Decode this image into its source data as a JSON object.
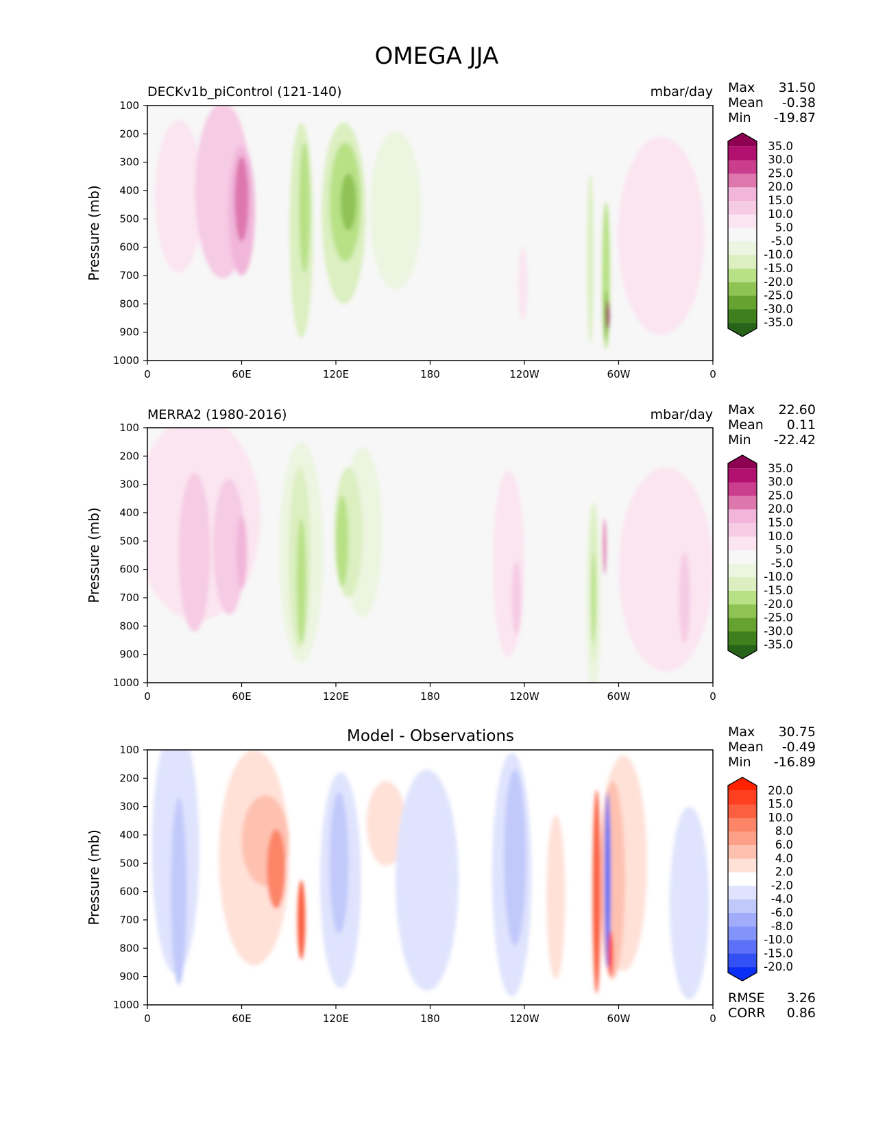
{
  "title": "OMEGA JJA",
  "chart_data": [
    {
      "type": "heatmap",
      "id": "model",
      "title": "DECKv1b_piControl (121-140)",
      "units": "mbar/day",
      "ylabel": "Pressure (mb)",
      "xticks": [
        "0",
        "60E",
        "120E",
        "180",
        "120W",
        "60W",
        "0"
      ],
      "yticks": [
        "100",
        "200",
        "300",
        "400",
        "500",
        "600",
        "700",
        "800",
        "900",
        "1000"
      ],
      "xlim": [
        0,
        360
      ],
      "ylim": [
        1000,
        100
      ],
      "stats": [
        {
          "label": "Max",
          "value": "31.50"
        },
        {
          "label": "Mean",
          "value": "-0.38"
        },
        {
          "label": "Min",
          "value": "-19.87"
        }
      ],
      "colorbar": {
        "labels": [
          "35.0",
          "30.0",
          "25.0",
          "20.0",
          "15.0",
          "10.0",
          "5.0",
          "-5.0",
          "-10.0",
          "-15.0",
          "-20.0",
          "-25.0",
          "-30.0",
          "-35.0"
        ],
        "colors": [
          "#8e0152",
          "#b2106e",
          "#cb3d8d",
          "#de77ae",
          "#f1b6da",
          "#f6cbe4",
          "#fbe5f0",
          "#f7f7f7",
          "#ecf5e0",
          "#dbefc0",
          "#b8e186",
          "#8fc354",
          "#65a22f",
          "#3f7f1e",
          "#276419"
        ]
      },
      "field_blobs": [
        {
          "x": 20,
          "y": 420,
          "w": 30,
          "h": 540,
          "c": "#fbe5f0"
        },
        {
          "x": 48,
          "y": 400,
          "w": 35,
          "h": 620,
          "c": "#f6cbe4"
        },
        {
          "x": 60,
          "y": 470,
          "w": 17,
          "h": 460,
          "c": "#f1b6da"
        },
        {
          "x": 60,
          "y": 430,
          "w": 9,
          "h": 300,
          "c": "#de77ae"
        },
        {
          "x": 98,
          "y": 540,
          "w": 15,
          "h": 760,
          "c": "#dbefc0"
        },
        {
          "x": 100,
          "y": 460,
          "w": 7,
          "h": 460,
          "c": "#b8e186"
        },
        {
          "x": 125,
          "y": 480,
          "w": 28,
          "h": 640,
          "c": "#dbefc0"
        },
        {
          "x": 126,
          "y": 440,
          "w": 20,
          "h": 420,
          "c": "#b8e186"
        },
        {
          "x": 128,
          "y": 440,
          "w": 10,
          "h": 200,
          "c": "#8fc354"
        },
        {
          "x": 158,
          "y": 470,
          "w": 33,
          "h": 560,
          "c": "#ecf5e0"
        },
        {
          "x": 239,
          "y": 730,
          "w": 6,
          "h": 260,
          "c": "#fbe5f0"
        },
        {
          "x": 282,
          "y": 640,
          "w": 4,
          "h": 600,
          "c": "#dbefc0"
        },
        {
          "x": 292,
          "y": 700,
          "w": 5,
          "h": 520,
          "c": "#b8e186"
        },
        {
          "x": 292,
          "y": 840,
          "w": 3,
          "h": 180,
          "c": "#8fc354"
        },
        {
          "x": 293,
          "y": 840,
          "w": 2,
          "h": 100,
          "c": "#8e0152"
        },
        {
          "x": 327,
          "y": 560,
          "w": 55,
          "h": 700,
          "c": "#fbe5f0"
        }
      ]
    },
    {
      "type": "heatmap",
      "id": "obs",
      "title": "MERRA2 (1980-2016)",
      "units": "mbar/day",
      "ylabel": "Pressure (mb)",
      "xticks": [
        "0",
        "60E",
        "120E",
        "180",
        "120W",
        "60W",
        "0"
      ],
      "yticks": [
        "100",
        "200",
        "300",
        "400",
        "500",
        "600",
        "700",
        "800",
        "900",
        "1000"
      ],
      "xlim": [
        0,
        360
      ],
      "ylim": [
        1000,
        100
      ],
      "stats": [
        {
          "label": "Max",
          "value": "22.60"
        },
        {
          "label": "Mean",
          "value": "0.11"
        },
        {
          "label": "Min",
          "value": "-22.42"
        }
      ],
      "colorbar": {
        "labels": [
          "35.0",
          "30.0",
          "25.0",
          "20.0",
          "15.0",
          "10.0",
          "5.0",
          "-5.0",
          "-10.0",
          "-15.0",
          "-20.0",
          "-25.0",
          "-30.0",
          "-35.0"
        ],
        "colors": [
          "#8e0152",
          "#b2106e",
          "#cb3d8d",
          "#de77ae",
          "#f1b6da",
          "#f6cbe4",
          "#fbe5f0",
          "#f7f7f7",
          "#ecf5e0",
          "#dbefc0",
          "#b8e186",
          "#8fc354",
          "#65a22f",
          "#3f7f1e",
          "#276419"
        ]
      },
      "field_blobs": [
        {
          "x": 32,
          "y": 420,
          "w": 80,
          "h": 720,
          "c": "#fbe5f0"
        },
        {
          "x": 30,
          "y": 540,
          "w": 20,
          "h": 560,
          "c": "#f6cbe4"
        },
        {
          "x": 52,
          "y": 520,
          "w": 20,
          "h": 480,
          "c": "#f6cbe4"
        },
        {
          "x": 60,
          "y": 540,
          "w": 7,
          "h": 260,
          "c": "#f1b6da"
        },
        {
          "x": 98,
          "y": 540,
          "w": 28,
          "h": 780,
          "c": "#ecf5e0"
        },
        {
          "x": 97,
          "y": 560,
          "w": 14,
          "h": 640,
          "c": "#dbefc0"
        },
        {
          "x": 98,
          "y": 640,
          "w": 6,
          "h": 440,
          "c": "#b8e186"
        },
        {
          "x": 137,
          "y": 470,
          "w": 25,
          "h": 600,
          "c": "#ecf5e0"
        },
        {
          "x": 128,
          "y": 470,
          "w": 18,
          "h": 460,
          "c": "#dbefc0"
        },
        {
          "x": 124,
          "y": 500,
          "w": 8,
          "h": 320,
          "c": "#b8e186"
        },
        {
          "x": 230,
          "y": 580,
          "w": 20,
          "h": 660,
          "c": "#fbe5f0"
        },
        {
          "x": 235,
          "y": 700,
          "w": 6,
          "h": 260,
          "c": "#f6cbe4"
        },
        {
          "x": 284,
          "y": 700,
          "w": 10,
          "h": 680,
          "c": "#ecf5e0"
        },
        {
          "x": 284,
          "y": 650,
          "w": 5,
          "h": 560,
          "c": "#dbefc0"
        },
        {
          "x": 284,
          "y": 700,
          "w": 3,
          "h": 320,
          "c": "#b8e186"
        },
        {
          "x": 291,
          "y": 520,
          "w": 2,
          "h": 200,
          "c": "#de77ae"
        },
        {
          "x": 330,
          "y": 600,
          "w": 60,
          "h": 720,
          "c": "#fbe5f0"
        },
        {
          "x": 342,
          "y": 700,
          "w": 7,
          "h": 320,
          "c": "#f6cbe4"
        }
      ]
    },
    {
      "type": "heatmap",
      "id": "diff",
      "title": "Model - Observations",
      "units": "",
      "ylabel": "Pressure (mb)",
      "xticks": [
        "0",
        "60E",
        "120E",
        "180",
        "120W",
        "60W",
        "0"
      ],
      "yticks": [
        "100",
        "200",
        "300",
        "400",
        "500",
        "600",
        "700",
        "800",
        "900",
        "1000"
      ],
      "xlim": [
        0,
        360
      ],
      "ylim": [
        1000,
        100
      ],
      "stats": [
        {
          "label": "Max",
          "value": "30.75"
        },
        {
          "label": "Mean",
          "value": "-0.49"
        },
        {
          "label": "Min",
          "value": "-16.89"
        }
      ],
      "extra_stats": [
        {
          "label": "RMSE",
          "value": "3.26"
        },
        {
          "label": "CORR",
          "value": "0.86"
        }
      ],
      "colorbar": {
        "labels": [
          "20.0",
          "15.0",
          "10.0",
          "8.0",
          "6.0",
          "4.0",
          "2.0",
          "-2.0",
          "-4.0",
          "-6.0",
          "-8.0",
          "-10.0",
          "-15.0",
          "-20.0"
        ],
        "colors": [
          "#ff2200",
          "#ff3f1f",
          "#fb5f3f",
          "#fc8568",
          "#fd9f89",
          "#fec1b0",
          "#ffe1d8",
          "#ffffff",
          "#dfe3fd",
          "#c1c9fb",
          "#a1adfa",
          "#8294f9",
          "#5c71f7",
          "#3350f5",
          "#0a2ef4"
        ]
      },
      "field_blobs": [
        {
          "x": 18,
          "y": 450,
          "w": 30,
          "h": 880,
          "c": "#dfe3fd"
        },
        {
          "x": 20,
          "y": 600,
          "w": 10,
          "h": 660,
          "c": "#c1c9fb"
        },
        {
          "x": 68,
          "y": 480,
          "w": 45,
          "h": 760,
          "c": "#ffe1d8"
        },
        {
          "x": 75,
          "y": 420,
          "w": 30,
          "h": 320,
          "c": "#fec1b0"
        },
        {
          "x": 82,
          "y": 520,
          "w": 12,
          "h": 280,
          "c": "#fc8568"
        },
        {
          "x": 98,
          "y": 700,
          "w": 5,
          "h": 280,
          "c": "#fb5f3f"
        },
        {
          "x": 123,
          "y": 560,
          "w": 26,
          "h": 760,
          "c": "#dfe3fd"
        },
        {
          "x": 122,
          "y": 500,
          "w": 12,
          "h": 500,
          "c": "#c1c9fb"
        },
        {
          "x": 152,
          "y": 360,
          "w": 25,
          "h": 300,
          "c": "#ffe1d8"
        },
        {
          "x": 178,
          "y": 560,
          "w": 40,
          "h": 780,
          "c": "#dfe3fd"
        },
        {
          "x": 232,
          "y": 540,
          "w": 25,
          "h": 860,
          "c": "#dfe3fd"
        },
        {
          "x": 234,
          "y": 480,
          "w": 14,
          "h": 620,
          "c": "#c1c9fb"
        },
        {
          "x": 260,
          "y": 620,
          "w": 12,
          "h": 580,
          "c": "#ffe1d8"
        },
        {
          "x": 303,
          "y": 500,
          "w": 30,
          "h": 760,
          "c": "#ffe1d8"
        },
        {
          "x": 296,
          "y": 560,
          "w": 16,
          "h": 700,
          "c": "#fec1b0"
        },
        {
          "x": 286,
          "y": 600,
          "w": 5,
          "h": 720,
          "c": "#fb5f3f"
        },
        {
          "x": 293,
          "y": 560,
          "w": 4,
          "h": 620,
          "c": "#5c71f7"
        },
        {
          "x": 295,
          "y": 820,
          "w": 3,
          "h": 160,
          "c": "#ff3f1f"
        },
        {
          "x": 345,
          "y": 640,
          "w": 25,
          "h": 680,
          "c": "#dfe3fd"
        }
      ]
    }
  ]
}
